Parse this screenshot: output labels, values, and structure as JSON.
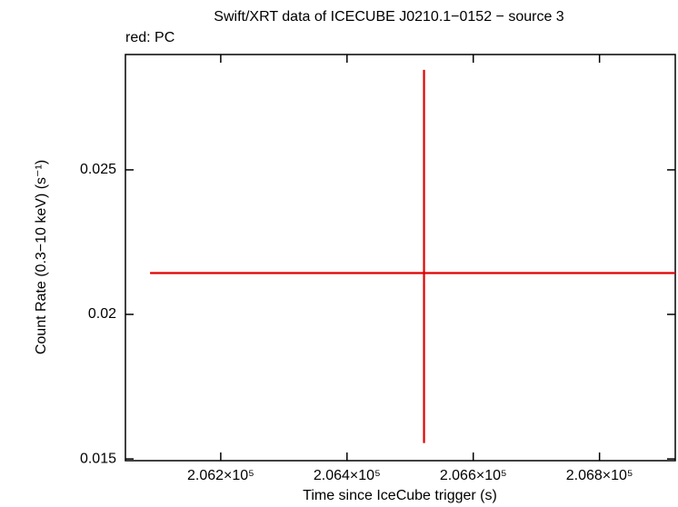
{
  "chart_data": {
    "type": "scatter",
    "title": "Swift/XRT data of ICECUBE J0210.1−0152 − source 3",
    "subtitle": "red: PC",
    "x_label": "Time since IceCube trigger (s)",
    "y_label": "Count Rate (0.3−10 keV) (s⁻¹)",
    "xlim": [
      206049,
      206920
    ],
    "ylim": [
      0.01494,
      0.02899
    ],
    "xticks": [
      {
        "value": 206200,
        "label": "2.062×10⁵"
      },
      {
        "value": 206400,
        "label": "2.064×10⁵"
      },
      {
        "value": 206600,
        "label": "2.066×10⁵"
      },
      {
        "value": 206800,
        "label": "2.068×10⁵"
      }
    ],
    "yticks": [
      0.015,
      0.02,
      0.025
    ],
    "series": [
      {
        "color": "#e00000",
        "x": [
          206522
        ],
        "values": [
          0.02143
        ],
        "xerr_minus": [
          434
        ],
        "xerr_plus": [
          398
        ],
        "yerr_minus": [
          0.00588
        ],
        "yerr_plus": [
          0.00703
        ]
      }
    ]
  }
}
